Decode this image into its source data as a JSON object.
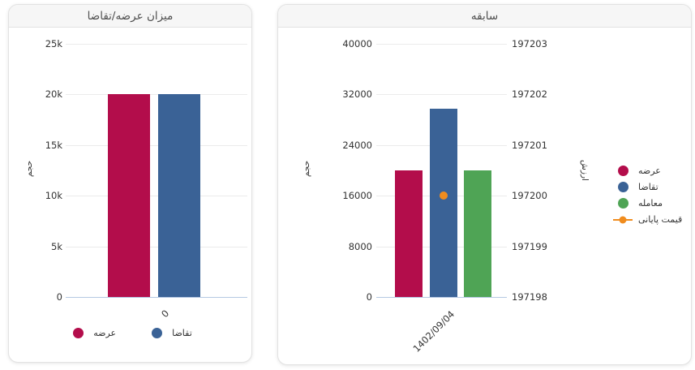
{
  "panels": {
    "supply_demand": {
      "title": "میزان عرضه/تقاضا"
    },
    "history": {
      "title": "سابقه"
    }
  },
  "colors": {
    "supply": "#b30d4b",
    "demand": "#3a6296",
    "trade": "#4fa455",
    "close_price": "#f08c1e",
    "zero_axis_line": "#b5c8e3"
  },
  "chart_data": [
    {
      "type": "bar",
      "title": "میزان عرضه/تقاضا",
      "categories": [
        "0"
      ],
      "series": [
        {
          "name": "عرضه",
          "color": "#b30d4b",
          "values": [
            20000
          ]
        },
        {
          "name": "تقاضا",
          "color": "#3a6296",
          "values": [
            20000
          ]
        }
      ],
      "xlabel": "",
      "ylabel": "حجم",
      "ylim": [
        0,
        25000
      ],
      "yticks": [
        0,
        5000,
        10000,
        15000,
        20000,
        25000
      ],
      "ytick_labels": [
        "0",
        "5k",
        "10k",
        "15k",
        "20k",
        "25k"
      ],
      "grid": true,
      "legend_position": "bottom"
    },
    {
      "type": "bar+point",
      "title": "سابقه",
      "categories": [
        "1402/09/04"
      ],
      "series": [
        {
          "name": "عرضه",
          "color": "#b30d4b",
          "axis": "left",
          "marker": "dot",
          "values": [
            20000
          ]
        },
        {
          "name": "تقاضا",
          "color": "#3a6296",
          "axis": "left",
          "marker": "dot",
          "values": [
            29800
          ]
        },
        {
          "name": "معامله",
          "color": "#4fa455",
          "axis": "left",
          "marker": "dot",
          "values": [
            20000
          ]
        },
        {
          "name": "قیمت پایانی",
          "color": "#f08c1e",
          "axis": "right",
          "marker": "line-dot",
          "values": [
            197200
          ]
        }
      ],
      "xlabel": "",
      "ylabel_left": "حجم",
      "ylabel_right": "ارزش",
      "ylim_left": [
        0,
        40000
      ],
      "ylim_right": [
        197198,
        197203
      ],
      "yticks_left": [
        0,
        8000,
        16000,
        24000,
        32000,
        40000
      ],
      "yticks_right": [
        197198,
        197199,
        197200,
        197201,
        197202,
        197203
      ],
      "grid": true,
      "legend_position": "right"
    }
  ]
}
